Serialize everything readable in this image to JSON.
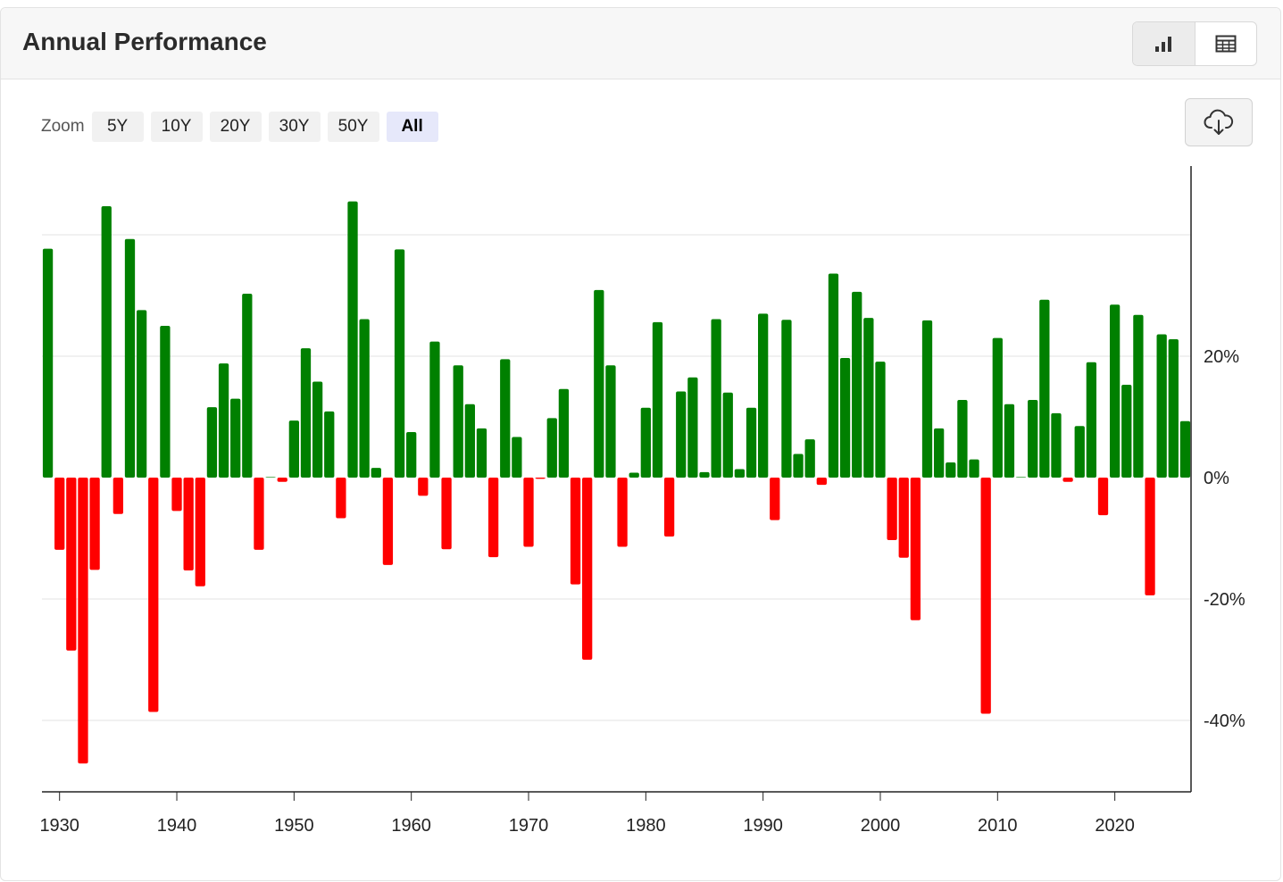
{
  "header": {
    "title": "Annual Performance",
    "chart_view_icon": "bar-chart-icon",
    "table_view_icon": "table-icon"
  },
  "toolbar": {
    "zoom_label": "Zoom",
    "zoom_options": [
      "5Y",
      "10Y",
      "20Y",
      "30Y",
      "50Y",
      "All"
    ],
    "zoom_selected": "All",
    "download_icon": "cloud-download-icon"
  },
  "colors": {
    "positive": "#008000",
    "negative": "#ff0000"
  },
  "chart_data": {
    "type": "bar",
    "title": "",
    "xlabel": "",
    "ylabel": "",
    "ylim": [
      -52,
      52
    ],
    "xlim": [
      1928.5,
      2026.5
    ],
    "yticks": [
      -40,
      -20,
      0,
      20
    ],
    "ytick_labels": [
      "-40%",
      "-20%",
      "0%",
      "20%"
    ],
    "xticks": [
      1930,
      1940,
      1950,
      1960,
      1970,
      1980,
      1990,
      2000,
      2010,
      2020
    ],
    "xtick_labels": [
      "1930",
      "1940",
      "1950",
      "1960",
      "1970",
      "1980",
      "1990",
      "2000",
      "2010",
      "2020"
    ],
    "grid": true,
    "legend": "none",
    "x": [
      1929,
      1930,
      1931,
      1932,
      1933,
      1934,
      1935,
      1936,
      1937,
      1938,
      1939,
      1940,
      1941,
      1942,
      1943,
      1944,
      1945,
      1946,
      1947,
      1948,
      1949,
      1950,
      1951,
      1952,
      1953,
      1954,
      1955,
      1956,
      1957,
      1958,
      1959,
      1960,
      1961,
      1962,
      1963,
      1964,
      1965,
      1966,
      1967,
      1968,
      1969,
      1970,
      1971,
      1972,
      1973,
      1974,
      1975,
      1976,
      1977,
      1978,
      1979,
      1980,
      1981,
      1982,
      1983,
      1984,
      1985,
      1986,
      1987,
      1988,
      1989,
      1990,
      1991,
      1992,
      1993,
      1994,
      1995,
      1996,
      1997,
      1998,
      1999,
      2000,
      2001,
      2002,
      2003,
      2004,
      2005,
      2006,
      2007,
      2008,
      2009,
      2010,
      2011,
      2012,
      2013,
      2014,
      2015,
      2016,
      2017,
      2018,
      2019,
      2020,
      2021,
      2022,
      2023,
      2024,
      2025,
      2026
    ],
    "values": [
      37.7,
      -11.9,
      -28.5,
      -47.1,
      -15.2,
      44.7,
      -6.0,
      39.3,
      27.6,
      -38.6,
      25.0,
      -5.5,
      -15.3,
      -17.9,
      11.6,
      18.8,
      13.0,
      30.3,
      -11.9,
      0,
      -0.7,
      9.4,
      21.3,
      15.8,
      10.9,
      -6.7,
      45.5,
      26.1,
      1.6,
      -14.4,
      37.6,
      7.5,
      -3.0,
      22.4,
      -11.8,
      18.5,
      12.1,
      8.1,
      -13.1,
      19.5,
      6.7,
      -11.4,
      -0.2,
      9.8,
      14.6,
      -17.6,
      -30.0,
      30.9,
      18.5,
      -11.4,
      0.8,
      11.5,
      25.6,
      -9.7,
      14.2,
      16.5,
      0.9,
      26.1,
      14.0,
      1.4,
      11.5,
      27.0,
      -7.0,
      26.0,
      3.9,
      6.3,
      -1.2,
      33.6,
      19.7,
      30.6,
      26.3,
      19.1,
      -10.3,
      -13.2,
      -23.5,
      25.9,
      8.1,
      2.5,
      12.8,
      3.0,
      -38.9,
      23.0,
      12.1,
      0,
      12.8,
      29.3,
      10.6,
      -0.7,
      8.5,
      19.0,
      -6.2,
      28.5,
      15.3,
      26.8,
      -19.4,
      23.6,
      22.8,
      9.3
    ]
  }
}
